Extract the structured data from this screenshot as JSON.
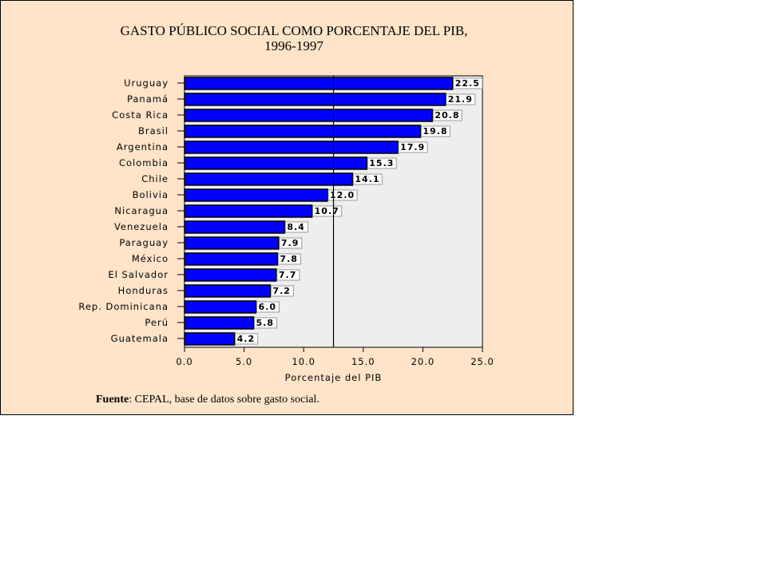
{
  "chart_data": {
    "type": "bar",
    "orientation": "horizontal",
    "title": "GASTO PÚBLICO SOCIAL COMO PORCENTAJE DEL PIB,",
    "subtitle": "1996-1997",
    "xlabel": "Porcentaje del PIB",
    "xlim": [
      0,
      25
    ],
    "xticks": [
      "0.0",
      "5.0",
      "10.0",
      "15.0",
      "20.0",
      "25.0"
    ],
    "reference_line": 12.5,
    "categories": [
      "Uruguay",
      "Panamá",
      "Costa Rica",
      "Brasil",
      "Argentina",
      "Colombia",
      "Chile",
      "Bolivia",
      "Nicaragua",
      "Venezuela",
      "Paraguay",
      "México",
      "El Salvador",
      "Honduras",
      "Rep. Dominicana",
      "Perú",
      "Guatemala"
    ],
    "values": [
      22.5,
      21.9,
      20.8,
      19.8,
      17.9,
      15.3,
      14.1,
      12.0,
      10.7,
      8.4,
      7.9,
      7.8,
      7.7,
      7.2,
      6.0,
      5.8,
      4.2
    ],
    "data_labels": [
      "22.5",
      "21.9",
      "20.8",
      "19.8",
      "17.9",
      "15.3",
      "14.1",
      "12.0",
      "10.7",
      "8.4",
      "7.9",
      "7.8",
      "7.7",
      "7.2",
      "6.0",
      "5.8",
      "4.2"
    ],
    "colors": {
      "bar": "#0000FF",
      "plot_bg": "#EEEEEE",
      "page_bg": "#FFE4CA"
    }
  },
  "source": {
    "label": "Fuente",
    "text": ": CEPAL, base de datos sobre gasto social."
  }
}
